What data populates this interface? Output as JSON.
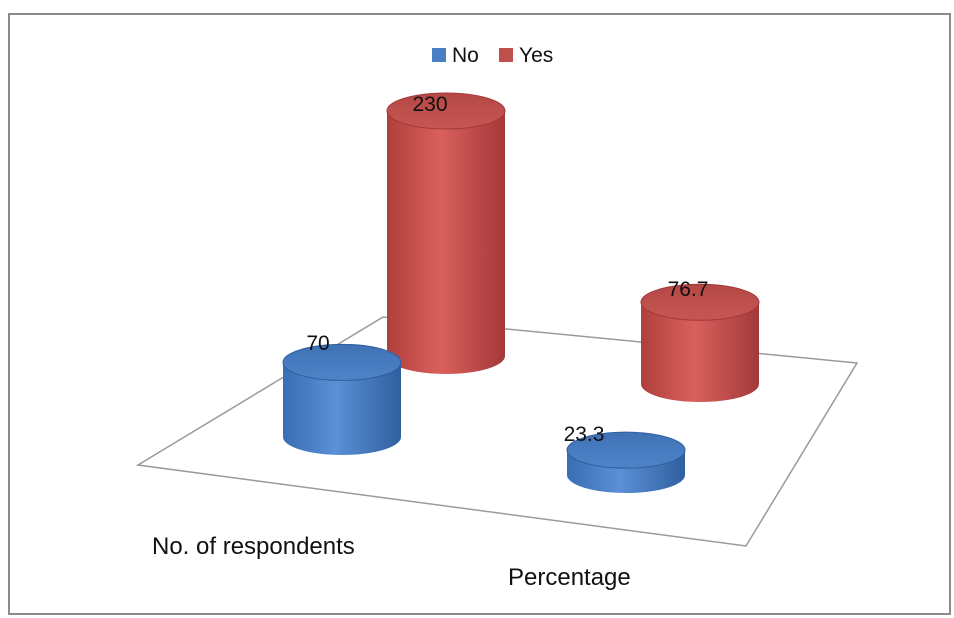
{
  "chart_data": {
    "type": "bar",
    "style": "3d-cylinder",
    "categories": [
      "No. of respondents",
      "Percentage"
    ],
    "series": [
      {
        "name": "No",
        "values": [
          70,
          23.3
        ],
        "color": "#4a7ec4"
      },
      {
        "name": "Yes",
        "values": [
          230,
          76.7
        ],
        "color": "#c0504d"
      }
    ],
    "data_labels": [
      [
        "70",
        "23.3"
      ],
      [
        "230",
        "76.7"
      ]
    ],
    "legend_position": "top",
    "grid": false,
    "ylim": [
      0,
      230
    ]
  }
}
